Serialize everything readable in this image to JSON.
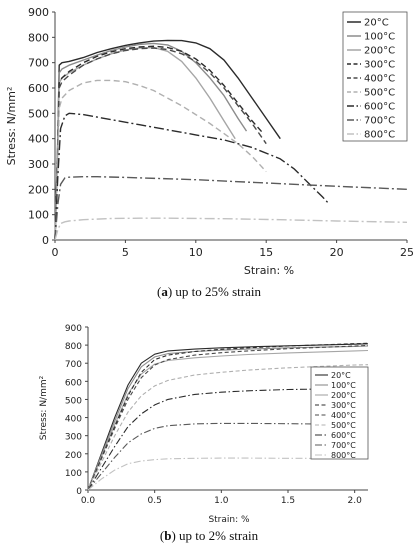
{
  "chart_data": [
    {
      "type": "line",
      "caption_letter": "a",
      "caption_text": "up to 25% strain",
      "ylabel": "Stress: N/mm²",
      "xlabel": "Strain: %",
      "xlim": [
        0,
        25
      ],
      "ylim": [
        0,
        900
      ],
      "xticks": [
        "0",
        "5",
        "10",
        "15",
        "20",
        "25"
      ],
      "yticks": [
        "0",
        "100",
        "200",
        "300",
        "400",
        "500",
        "600",
        "700",
        "800",
        "900"
      ],
      "legend_position": "top-right",
      "grid": false,
      "series": [
        {
          "name": "20°C",
          "color": "#2b2b2b",
          "dash": "solid",
          "x": [
            0,
            0.2,
            0.3,
            0.5,
            1,
            2,
            3,
            4,
            5,
            6,
            7,
            8,
            9,
            10,
            11,
            12,
            13,
            14,
            15,
            16
          ],
          "y": [
            0,
            400,
            690,
            700,
            705,
            720,
            740,
            755,
            768,
            778,
            785,
            788,
            787,
            778,
            755,
            710,
            640,
            560,
            480,
            400
          ]
        },
        {
          "name": "100°C",
          "color": "#8c8c8c",
          "dash": "solid",
          "x": [
            0,
            0.2,
            0.3,
            0.5,
            1,
            2,
            3,
            4,
            5,
            6,
            7,
            8,
            9,
            10,
            11,
            12,
            13,
            13.6
          ],
          "y": [
            0,
            380,
            660,
            675,
            690,
            710,
            730,
            748,
            762,
            772,
            776,
            770,
            745,
            700,
            640,
            570,
            480,
            430
          ]
        },
        {
          "name": "200°C",
          "color": "#a6a6a6",
          "dash": "solid",
          "x": [
            0,
            0.2,
            0.3,
            0.5,
            1,
            2,
            3,
            4,
            5,
            6,
            7,
            8,
            9,
            10,
            11,
            12,
            12.8
          ],
          "y": [
            0,
            360,
            620,
            640,
            660,
            690,
            715,
            735,
            750,
            758,
            760,
            745,
            705,
            640,
            560,
            470,
            400
          ]
        },
        {
          "name": "300°C",
          "color": "#2b2b2b",
          "dash": "dashed",
          "x": [
            0,
            0.2,
            0.3,
            0.5,
            1,
            2,
            3,
            4,
            5,
            6,
            7,
            8,
            9,
            10,
            11,
            12,
            13,
            14,
            14.8
          ],
          "y": [
            0,
            350,
            620,
            640,
            665,
            700,
            725,
            743,
            755,
            762,
            765,
            760,
            745,
            715,
            670,
            610,
            540,
            470,
            420
          ]
        },
        {
          "name": "400°C",
          "color": "#4a4a4a",
          "dash": "dashed",
          "x": [
            0,
            0.2,
            0.3,
            0.5,
            1,
            2,
            3,
            4,
            5,
            6,
            7,
            8,
            9,
            10,
            11,
            12,
            13,
            14,
            15
          ],
          "y": [
            0,
            340,
            600,
            625,
            650,
            690,
            715,
            735,
            748,
            755,
            758,
            752,
            735,
            705,
            660,
            600,
            530,
            460,
            380
          ]
        },
        {
          "name": "500°C",
          "color": "#b0b0b0",
          "dash": "dashed",
          "x": [
            0,
            0.2,
            0.3,
            0.5,
            1,
            2,
            3,
            4,
            5,
            6,
            7,
            8,
            9,
            10,
            11,
            12,
            13,
            14,
            15
          ],
          "y": [
            0,
            300,
            520,
            560,
            590,
            620,
            630,
            630,
            625,
            610,
            590,
            560,
            530,
            495,
            460,
            420,
            380,
            330,
            270
          ]
        },
        {
          "name": "600°C",
          "color": "#2b2b2b",
          "dash": "dashdot",
          "x": [
            0,
            0.2,
            0.4,
            0.7,
            1,
            2,
            3,
            4,
            6,
            8,
            10,
            12,
            14,
            16,
            17,
            18,
            19,
            19.5
          ],
          "y": [
            0,
            250,
            440,
            490,
            500,
            495,
            485,
            475,
            455,
            435,
            415,
            395,
            365,
            320,
            280,
            225,
            170,
            140
          ]
        },
        {
          "name": "700°C",
          "color": "#5a5a5a",
          "dash": "dashdot",
          "x": [
            0,
            0.2,
            0.4,
            0.7,
            1,
            2,
            3,
            5,
            10,
            15,
            20,
            25
          ],
          "y": [
            0,
            140,
            220,
            245,
            248,
            250,
            250,
            247,
            238,
            225,
            212,
            200
          ]
        },
        {
          "name": "800°C",
          "color": "#c2c2c2",
          "dash": "dashdot",
          "x": [
            0,
            0.2,
            0.4,
            0.7,
            1,
            2,
            4,
            6,
            8,
            12,
            16,
            20,
            25
          ],
          "y": [
            0,
            40,
            65,
            72,
            75,
            80,
            85,
            86,
            86,
            84,
            80,
            75,
            70
          ]
        }
      ]
    },
    {
      "type": "line",
      "caption_letter": "b",
      "caption_text": "up to 2% strain",
      "ylabel": "Stress: N/mm²",
      "xlabel": "Strain: %",
      "xlim": [
        0,
        2.1
      ],
      "ylim": [
        0,
        900
      ],
      "xticks": [
        "0.0",
        "0.5",
        "1.0",
        "1.5",
        "2.0"
      ],
      "yticks": [
        "0",
        "100",
        "200",
        "300",
        "400",
        "500",
        "600",
        "700",
        "800",
        "900"
      ],
      "legend_position": "right",
      "grid": false,
      "series": [
        {
          "name": "20°C",
          "color": "#2b2b2b",
          "dash": "solid",
          "x": [
            0,
            0.1,
            0.2,
            0.3,
            0.4,
            0.5,
            0.6,
            0.8,
            1.0,
            1.2,
            1.5,
            2.0,
            2.1
          ],
          "y": [
            0,
            200,
            400,
            580,
            700,
            750,
            768,
            778,
            785,
            790,
            796,
            805,
            807
          ]
        },
        {
          "name": "100°C",
          "color": "#8c8c8c",
          "dash": "solid",
          "x": [
            0,
            0.1,
            0.2,
            0.3,
            0.4,
            0.5,
            0.6,
            0.8,
            1.0,
            1.2,
            1.5,
            2.0,
            2.1
          ],
          "y": [
            0,
            190,
            380,
            560,
            680,
            735,
            753,
            765,
            772,
            778,
            785,
            793,
            795
          ]
        },
        {
          "name": "200°C",
          "color": "#a6a6a6",
          "dash": "solid",
          "x": [
            0,
            0.1,
            0.2,
            0.3,
            0.4,
            0.5,
            0.6,
            0.8,
            1.0,
            1.2,
            1.5,
            2.0,
            2.1
          ],
          "y": [
            0,
            180,
            360,
            530,
            640,
            695,
            715,
            730,
            740,
            748,
            757,
            768,
            770
          ]
        },
        {
          "name": "300°C",
          "color": "#2b2b2b",
          "dash": "dashed",
          "x": [
            0,
            0.1,
            0.2,
            0.3,
            0.4,
            0.5,
            0.6,
            0.8,
            1.0,
            1.2,
            1.5,
            2.0,
            2.1
          ],
          "y": [
            0,
            175,
            350,
            520,
            650,
            720,
            745,
            765,
            777,
            785,
            795,
            808,
            810
          ]
        },
        {
          "name": "400°C",
          "color": "#4a4a4a",
          "dash": "dashed",
          "x": [
            0,
            0.1,
            0.2,
            0.3,
            0.4,
            0.5,
            0.6,
            0.8,
            1.0,
            1.2,
            1.5,
            2.0,
            2.1
          ],
          "y": [
            0,
            170,
            340,
            500,
            620,
            690,
            720,
            745,
            758,
            768,
            780,
            795,
            798
          ]
        },
        {
          "name": "500°C",
          "color": "#b0b0b0",
          "dash": "dashed",
          "x": [
            0,
            0.1,
            0.2,
            0.3,
            0.4,
            0.5,
            0.6,
            0.8,
            1.0,
            1.2,
            1.5,
            2.0,
            2.1
          ],
          "y": [
            0,
            150,
            300,
            430,
            520,
            575,
            605,
            635,
            650,
            662,
            675,
            690,
            692
          ]
        },
        {
          "name": "600°C",
          "color": "#2b2b2b",
          "dash": "dashdot",
          "x": [
            0,
            0.1,
            0.2,
            0.3,
            0.4,
            0.5,
            0.6,
            0.8,
            1.0,
            1.2,
            1.5,
            2.0,
            2.1
          ],
          "y": [
            0,
            120,
            240,
            350,
            420,
            470,
            500,
            528,
            540,
            548,
            555,
            560,
            560
          ]
        },
        {
          "name": "700°C",
          "color": "#5a5a5a",
          "dash": "dashdot",
          "x": [
            0,
            0.1,
            0.2,
            0.3,
            0.4,
            0.5,
            0.6,
            0.8,
            1.0,
            1.2,
            1.5,
            2.0,
            2.1
          ],
          "y": [
            0,
            90,
            180,
            260,
            310,
            340,
            355,
            365,
            368,
            368,
            366,
            362,
            360
          ]
        },
        {
          "name": "800°C",
          "color": "#c2c2c2",
          "dash": "dashdot",
          "x": [
            0,
            0.1,
            0.2,
            0.3,
            0.4,
            0.5,
            0.6,
            0.8,
            1.0,
            1.2,
            1.5,
            2.0,
            2.1
          ],
          "y": [
            0,
            60,
            110,
            145,
            160,
            168,
            172,
            175,
            176,
            176,
            175,
            174,
            173
          ]
        }
      ]
    }
  ]
}
